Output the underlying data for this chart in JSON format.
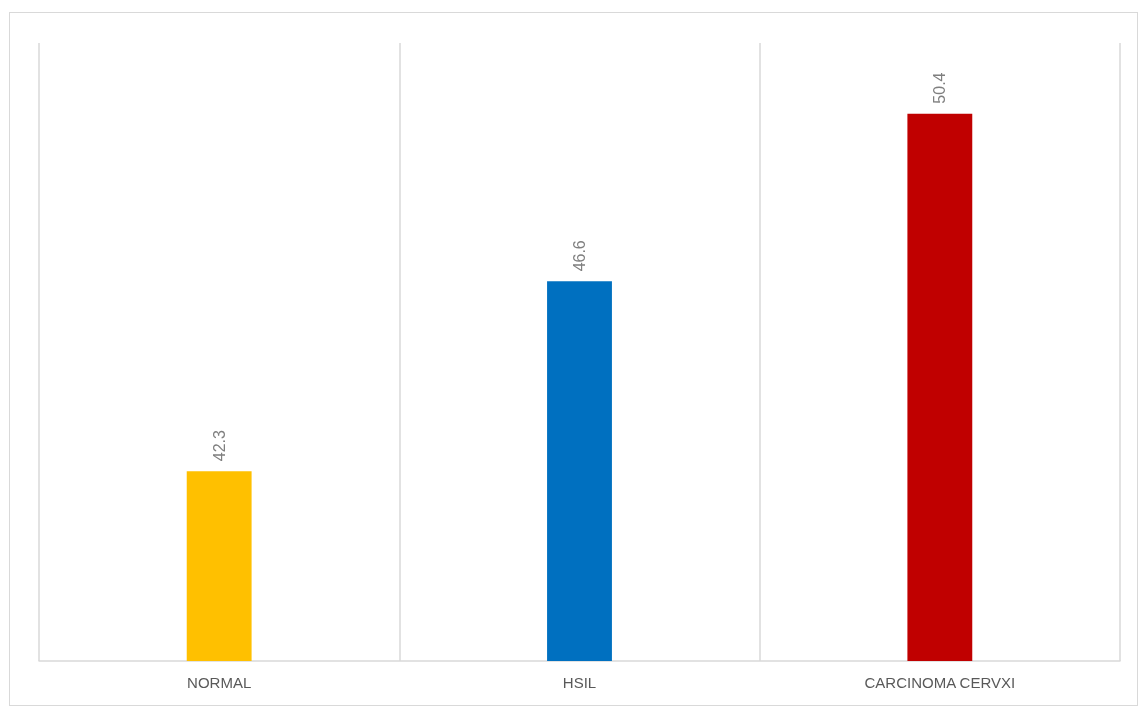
{
  "chart_data": {
    "type": "bar",
    "categories": [
      "NORMAL",
      "HSIL",
      "CARCINOMA CERVXI"
    ],
    "values": [
      42.3,
      46.6,
      50.4
    ],
    "colors": [
      "#ffc000",
      "#0070c0",
      "#c00000"
    ],
    "ylim": [
      38,
      52
    ],
    "data_labels": true,
    "grid": "x",
    "tick_labels": "x"
  }
}
